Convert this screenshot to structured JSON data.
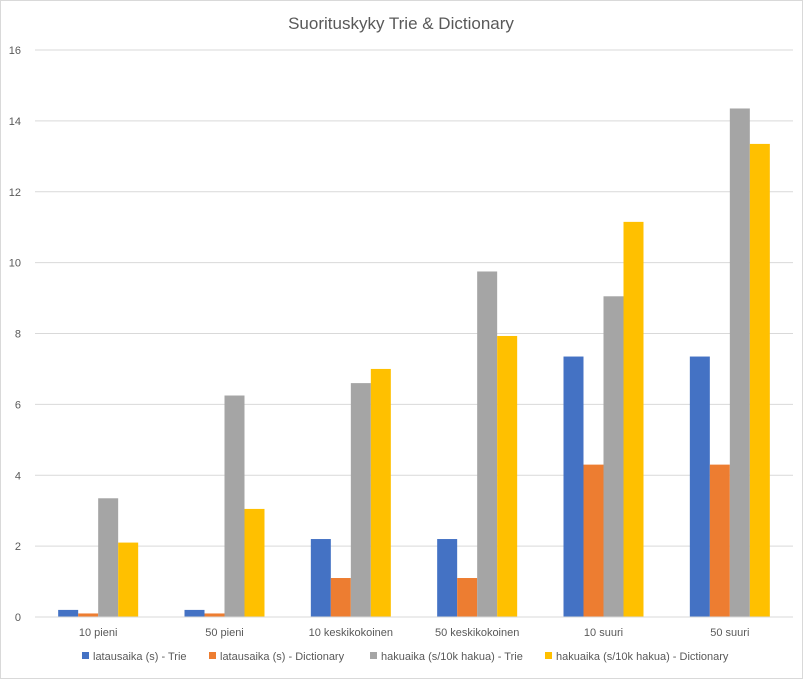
{
  "chart_data": {
    "type": "bar",
    "title": "Suorituskyky Trie & Dictionary",
    "xlabel": "",
    "ylabel": "",
    "ylim": [
      0,
      16
    ],
    "yticks": [
      0,
      2,
      4,
      6,
      8,
      10,
      12,
      14,
      16
    ],
    "grid": true,
    "legend_position": "bottom",
    "categories": [
      "10 pieni",
      "50 pieni",
      "10 keskikokoinen",
      "50 keskikokoinen",
      "10 suuri",
      "50 suuri"
    ],
    "series": [
      {
        "name": "latausaika (s) - Trie",
        "color": "#4472c4",
        "values": [
          0.2,
          0.2,
          2.2,
          2.2,
          7.35,
          7.35
        ]
      },
      {
        "name": "latausaika (s) - Dictionary",
        "color": "#ed7d31",
        "values": [
          0.1,
          0.1,
          1.1,
          1.1,
          4.3,
          4.3
        ]
      },
      {
        "name": "hakuaika (s/10k hakua) - Trie",
        "color": "#a5a5a5",
        "values": [
          3.35,
          6.25,
          6.6,
          9.75,
          9.05,
          14.35
        ]
      },
      {
        "name": "hakuaika (s/10k hakua) - Dictionary",
        "color": "#ffc000",
        "values": [
          2.1,
          3.05,
          7.0,
          7.93,
          11.15,
          13.35
        ]
      }
    ]
  }
}
